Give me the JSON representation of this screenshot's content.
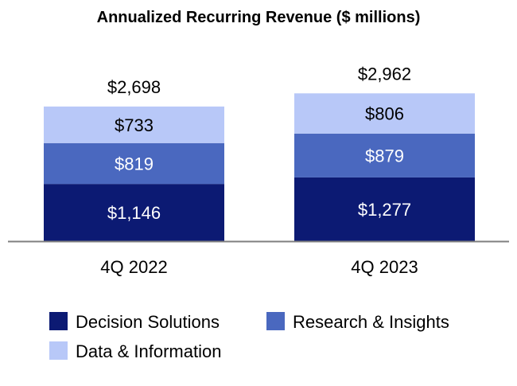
{
  "chart_data": {
    "type": "bar",
    "stacked": true,
    "title": "Annualized Recurring Revenue ($ millions)",
    "xlabel": "",
    "ylabel": "",
    "categories": [
      "4Q 2022",
      "4Q 2023"
    ],
    "series": [
      {
        "name": "Decision Solutions",
        "values": [
          1146,
          1277
        ],
        "labels": [
          "$1,146",
          "$1,277"
        ],
        "color": "#0c1a73",
        "label_color": "#ffffff"
      },
      {
        "name": "Research & Insights",
        "values": [
          819,
          879
        ],
        "labels": [
          "$819",
          "$879"
        ],
        "color": "#4a68bf",
        "label_color": "#ffffff"
      },
      {
        "name": "Data & Information",
        "values": [
          733,
          806
        ],
        "labels": [
          "$733",
          "$806"
        ],
        "color": "#b8c8f8",
        "label_color": "#000000"
      }
    ],
    "totals": [
      2698,
      2962
    ],
    "total_labels": [
      "$2,698",
      "$2,962"
    ],
    "grid": false,
    "legend_placement": "bottom"
  }
}
